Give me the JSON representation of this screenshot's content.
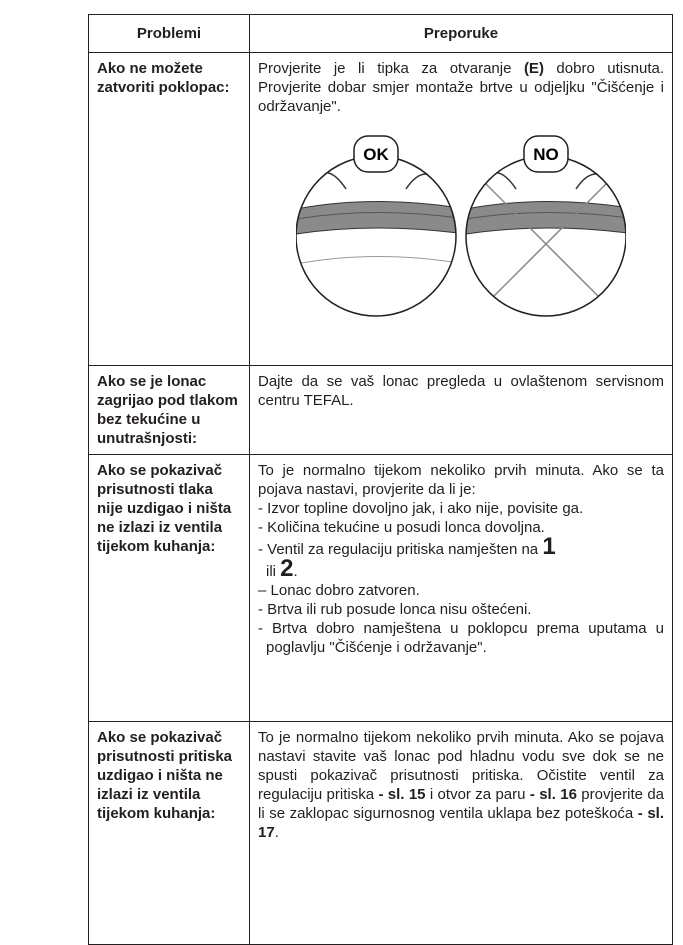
{
  "table": {
    "header": [
      "Problemi",
      "Preporuke"
    ],
    "rows": [
      {
        "problem": "Ako ne možete zatvoriti poklopac:",
        "recommendation": [
          [
            "Provjerite je li tipka za otvaranje ",
            "(E)",
            " dobro utisnuta. Provjerite dobar smjer montaže brtve u odjeljku \"Čišćenje i održavanje\"."
          ]
        ],
        "illustration": [
          "OK",
          "NO"
        ]
      },
      {
        "problem": "Ako se je lonac zagrijao pod tlakom bez tekućine u unutrašnjosti:",
        "recommendation": [
          [
            "Dajte da se vaš lonac pregleda u ovlaštenom servisnom centru TEFAL."
          ]
        ]
      },
      {
        "problem": "Ako se pokazivač prisutnosti tlaka nije uzdigao i ništa ne izlazi iz ventila tijekom kuhanja:",
        "recommendation": [
          [
            "To je normalno tijekom nekoliko prvih minuta. Ako se ta pojava nastavi, provjerite da li je:"
          ],
          [
            "- Izvor topline dovoljno jak, i ako nije, povisite ga."
          ],
          [
            "- Količina tekućine u posudi lonca dovoljna."
          ],
          [
            "- Ventil za regulaciju pritiska namješten na ",
            "1",
            " ili ",
            "2",
            "."
          ],
          [
            "– Lonac dobro zatvoren."
          ],
          [
            "- Brtva ili rub posude lonca nisu oštećeni."
          ],
          [
            "- Brtva dobro namještena u poklopcu prema uputama u poglavlju \"Čišćenje i održavanje\"."
          ]
        ]
      },
      {
        "problem": "Ako se pokazivač prisutnosti pritiska uzdigao i ništa ne izlazi iz ventila tijekom kuhanja:",
        "recommendation": [
          [
            "To je normalno tijekom nekoliko prvih minuta. Ako se pojava nastavi stavite vaš lonac pod hladnu vodu sve dok se ne spusti pokazivač prisutnosti pritiska. Očistite ventil za regulaciju pritiska ",
            "- sl. 15",
            " i otvor za paru ",
            "- sl. 16",
            " provjerite da li se zaklopac sigurnosnog ventila uklapa bez poteškoća ",
            "- sl. 17",
            "."
          ]
        ]
      }
    ]
  }
}
